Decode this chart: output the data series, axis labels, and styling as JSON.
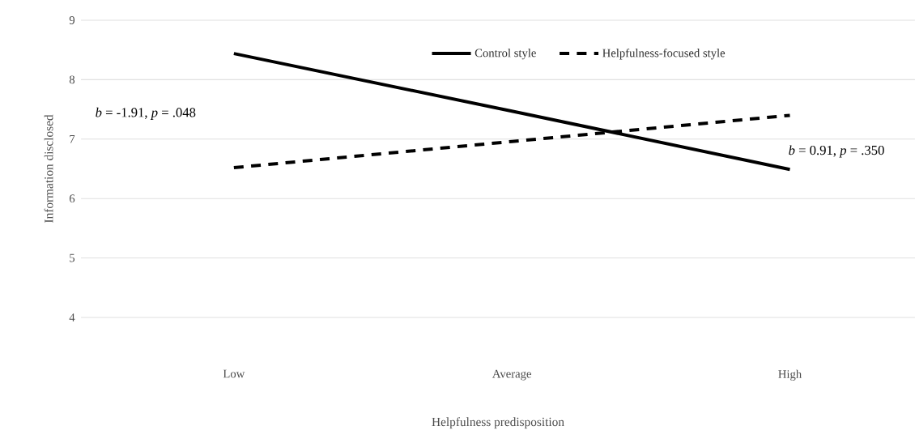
{
  "chart_data": {
    "type": "line",
    "xlabel": "Helpfulness predisposition",
    "ylabel": "Information disclosed",
    "categories": [
      "Low",
      "Average",
      "High"
    ],
    "series": [
      {
        "name": "Control style",
        "color": "#000000",
        "line_style": "solid",
        "values": [
          8.44,
          7.47,
          6.49
        ]
      },
      {
        "name": "Helpfulness-focused style",
        "color": "#000000",
        "line_style": "dashed",
        "values": [
          6.52,
          6.96,
          7.4
        ]
      }
    ],
    "ylim": [
      4,
      9
    ],
    "yticks": [
      4,
      5,
      6,
      7,
      8,
      9
    ],
    "grid": "y",
    "legend": "top",
    "marker": "none",
    "annotations": [
      "*b* = -1.91, *p* = .048",
      "*b* = 0.91, *p* = .350"
    ]
  }
}
